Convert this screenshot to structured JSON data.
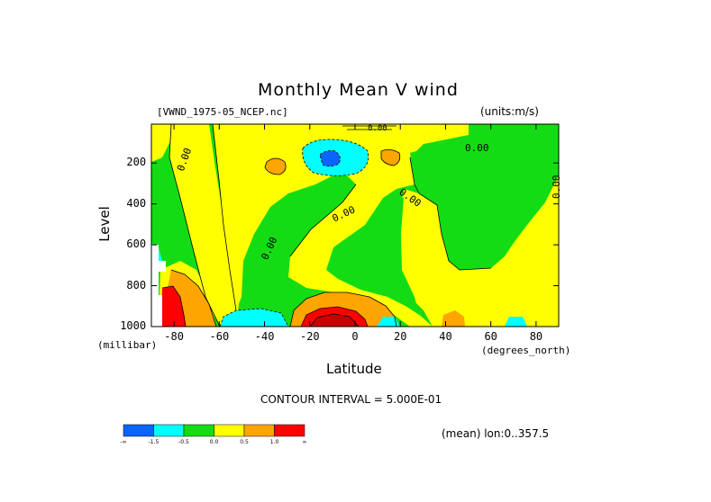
{
  "chart_data": {
    "type": "heatmap",
    "title": "Monthly Mean V wind",
    "dataset_label": "[VWND_1975-05_NCEP.nc]",
    "units_label": "(units:m/s)",
    "xlabel": "Latitude",
    "ylabel": "Level",
    "x_units_label": "(degrees_north)",
    "y_units_label": "(millibar)",
    "xlim": [
      -90,
      90
    ],
    "ylim": [
      1000,
      10
    ],
    "x_ticks": [
      "-80",
      "-60",
      "-40",
      "-20",
      "0",
      "20",
      "40",
      "60",
      "80"
    ],
    "y_ticks": [
      "200",
      "400",
      "600",
      "800",
      "1000"
    ],
    "contour_interval_text": "CONTOUR INTERVAL = 5.000E-01",
    "mean_text": "(mean) lon:0..357.5",
    "contour_labels": [
      "0.00",
      "0.00",
      "0.00",
      "0.00",
      "0.00",
      "0.00",
      "0.00"
    ],
    "colorbar": {
      "colors": [
        "#0a64ff",
        "#00ffff",
        "#14dc14",
        "#ffff00",
        "#ffa500",
        "#ff0000"
      ],
      "labels": [
        "-∞",
        "-1.5",
        "-0.5",
        "0.0",
        "0.5",
        "1.0",
        "∞"
      ]
    },
    "grid": false
  }
}
